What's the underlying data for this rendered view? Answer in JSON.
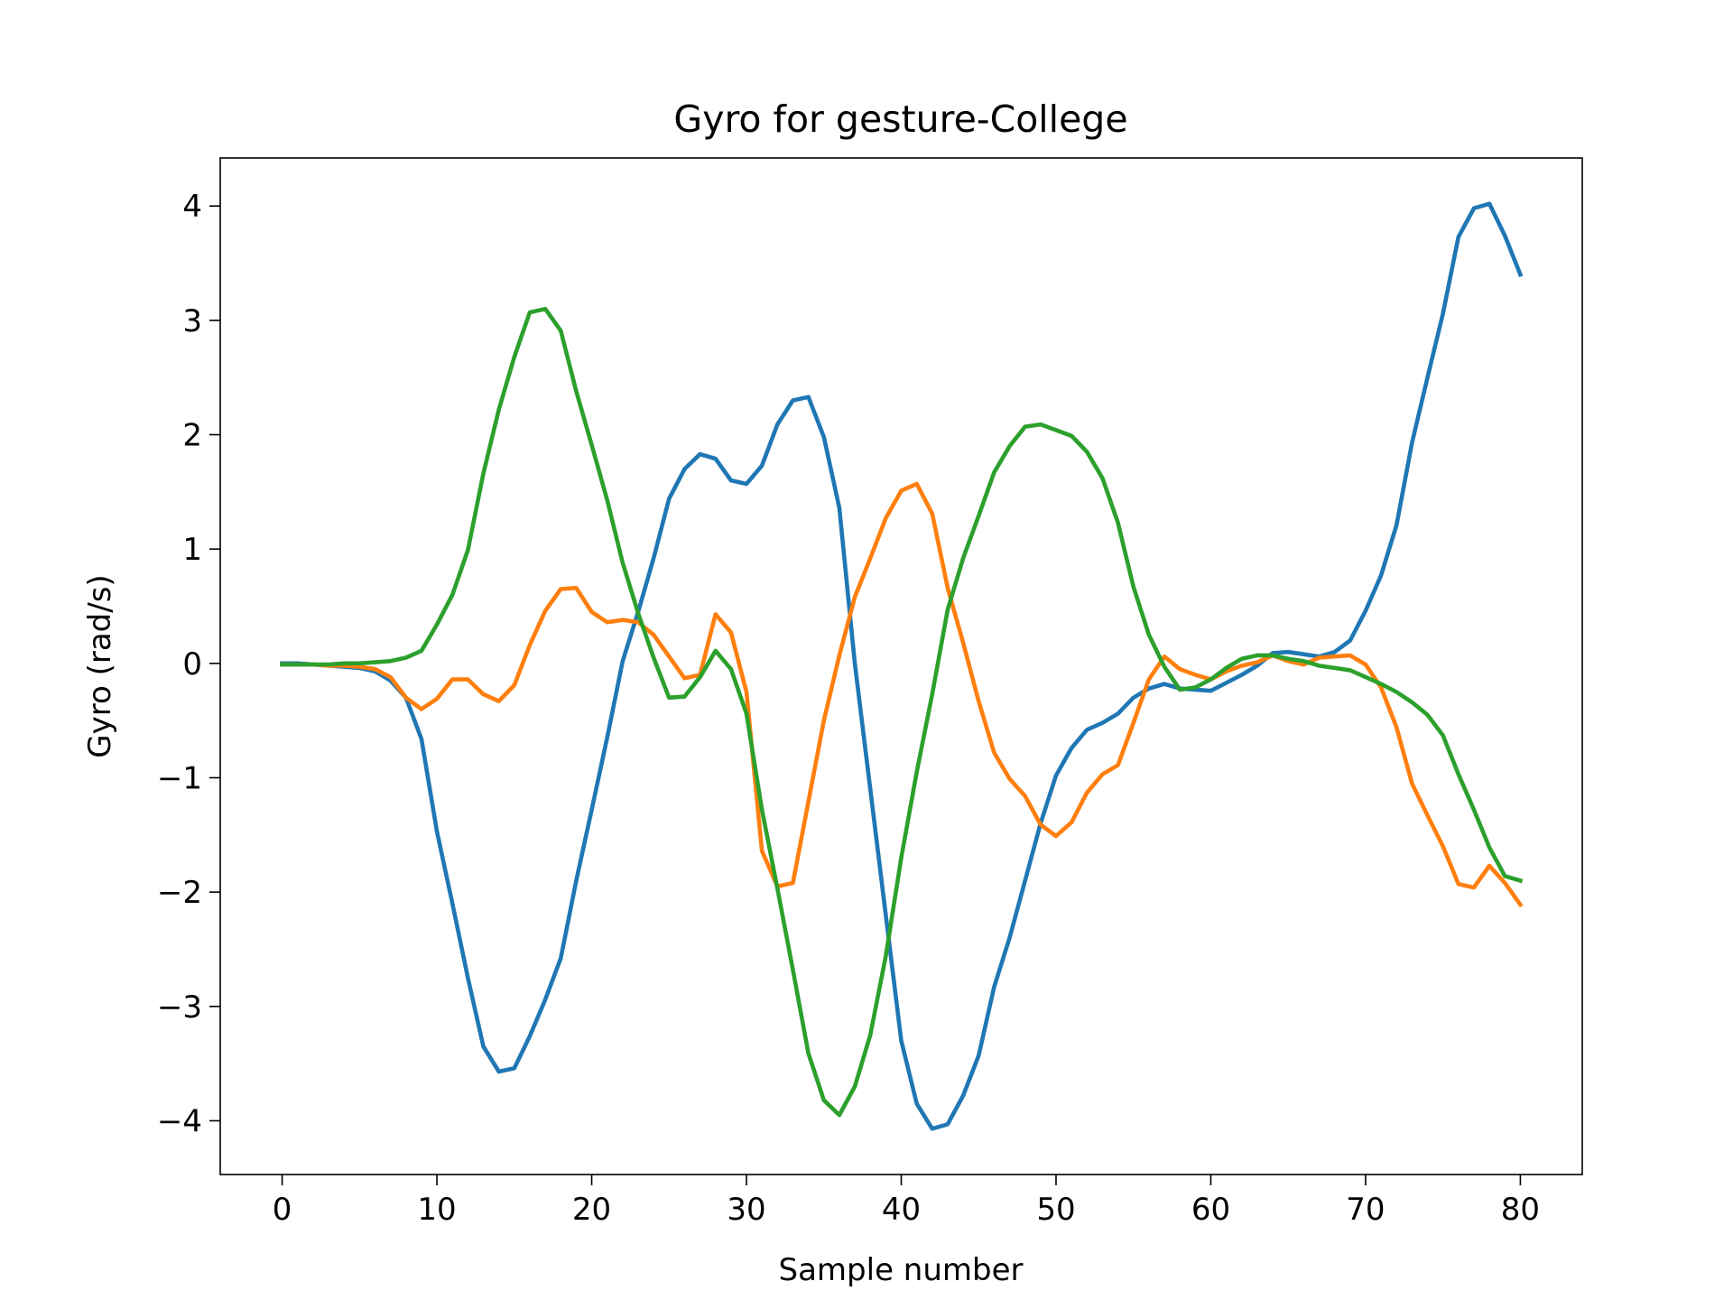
{
  "chart_data": {
    "type": "line",
    "title": "Gyro for gesture-College",
    "xlabel": "Sample number",
    "ylabel": "Gyro  (rad/s)",
    "x": [
      0,
      1,
      2,
      3,
      4,
      5,
      6,
      7,
      8,
      9,
      10,
      11,
      12,
      13,
      14,
      15,
      16,
      17,
      18,
      19,
      20,
      21,
      22,
      23,
      24,
      25,
      26,
      27,
      28,
      29,
      30,
      31,
      32,
      33,
      34,
      35,
      36,
      37,
      38,
      39,
      40,
      41,
      42,
      43,
      44,
      45,
      46,
      47,
      48,
      49,
      50,
      51,
      52,
      53,
      54,
      55,
      56,
      57,
      58,
      59,
      60,
      61,
      62,
      63,
      64,
      65,
      66,
      67,
      68,
      69,
      70,
      71,
      72,
      73,
      74,
      75,
      76,
      77,
      78,
      79,
      80
    ],
    "series": [
      {
        "color": "#1f77b4",
        "values": [
          0,
          0,
          -0.01,
          -0.02,
          -0.03,
          -0.04,
          -0.07,
          -0.15,
          -0.3,
          -0.66,
          -1.47,
          -2.1,
          -2.75,
          -3.35,
          -3.57,
          -3.54,
          -3.26,
          -2.94,
          -2.58,
          -1.9,
          -1.28,
          -0.65,
          0.02,
          0.45,
          0.92,
          1.44,
          1.7,
          1.83,
          1.79,
          1.6,
          1.57,
          1.73,
          2.09,
          2.3,
          2.33,
          1.98,
          1.36,
          0.0,
          -1.1,
          -2.2,
          -3.3,
          -3.85,
          -4.07,
          -4.03,
          -3.78,
          -3.43,
          -2.83,
          -2.4,
          -1.9,
          -1.4,
          -0.98,
          -0.74,
          -0.58,
          -0.52,
          -0.44,
          -0.3,
          -0.22,
          -0.18,
          -0.22,
          -0.23,
          -0.24,
          -0.17,
          -0.1,
          -0.02,
          0.09,
          0.1,
          0.08,
          0.06,
          0.1,
          0.2,
          0.46,
          0.77,
          1.21,
          1.93,
          2.5,
          3.06,
          3.73,
          3.98,
          4.02,
          3.74,
          3.4
        ]
      },
      {
        "color": "#ff7f0e",
        "values": [
          -0.01,
          -0.01,
          -0.01,
          -0.02,
          -0.02,
          -0.03,
          -0.05,
          -0.12,
          -0.3,
          -0.4,
          -0.31,
          -0.14,
          -0.14,
          -0.27,
          -0.33,
          -0.19,
          0.16,
          0.46,
          0.65,
          0.66,
          0.45,
          0.36,
          0.38,
          0.36,
          0.25,
          0.06,
          -0.13,
          -0.1,
          0.43,
          0.27,
          -0.25,
          -1.64,
          -1.95,
          -1.92,
          -1.21,
          -0.5,
          0.07,
          0.58,
          0.92,
          1.27,
          1.51,
          1.57,
          1.31,
          0.66,
          0.18,
          -0.33,
          -0.78,
          -1.01,
          -1.16,
          -1.41,
          -1.51,
          -1.39,
          -1.13,
          -0.97,
          -0.89,
          -0.52,
          -0.14,
          0.06,
          -0.05,
          -0.1,
          -0.14,
          -0.07,
          -0.02,
          0.01,
          0.07,
          0.02,
          -0.01,
          0.05,
          0.06,
          0.07,
          -0.01,
          -0.21,
          -0.56,
          -1.05,
          -1.33,
          -1.6,
          -1.93,
          -1.96,
          -1.77,
          -1.92,
          -2.11
        ]
      },
      {
        "color": "#2ca02c",
        "values": [
          -0.01,
          -0.01,
          -0.01,
          -0.01,
          0,
          0,
          0.01,
          0.02,
          0.05,
          0.11,
          0.34,
          0.6,
          0.99,
          1.66,
          2.22,
          2.68,
          3.07,
          3.1,
          2.91,
          2.38,
          1.91,
          1.43,
          0.88,
          0.44,
          0.05,
          -0.3,
          -0.29,
          -0.12,
          0.11,
          -0.05,
          -0.44,
          -1.28,
          -1.97,
          -2.68,
          -3.41,
          -3.82,
          -3.95,
          -3.7,
          -3.25,
          -2.56,
          -1.7,
          -0.95,
          -0.27,
          0.47,
          0.92,
          1.29,
          1.67,
          1.9,
          2.07,
          2.09,
          2.04,
          1.99,
          1.85,
          1.62,
          1.23,
          0.67,
          0.25,
          -0.03,
          -0.23,
          -0.21,
          -0.14,
          -0.04,
          0.04,
          0.07,
          0.07,
          0.04,
          0.02,
          -0.02,
          -0.04,
          -0.06,
          -0.12,
          -0.18,
          -0.25,
          -0.34,
          -0.45,
          -0.63,
          -0.97,
          -1.28,
          -1.61,
          -1.86,
          -1.9
        ]
      }
    ],
    "xlim": [
      -4,
      84
    ],
    "xticks": [
      0,
      10,
      20,
      30,
      40,
      50,
      60,
      70,
      80
    ],
    "ylim": [
      -4.47,
      4.42
    ],
    "yticks": [
      {
        "value": -4,
        "label": "−4"
      },
      {
        "value": -3,
        "label": "−3"
      },
      {
        "value": -2,
        "label": "−2"
      },
      {
        "value": -1,
        "label": "−1"
      },
      0,
      1,
      2,
      3,
      4
    ],
    "grid": false
  }
}
